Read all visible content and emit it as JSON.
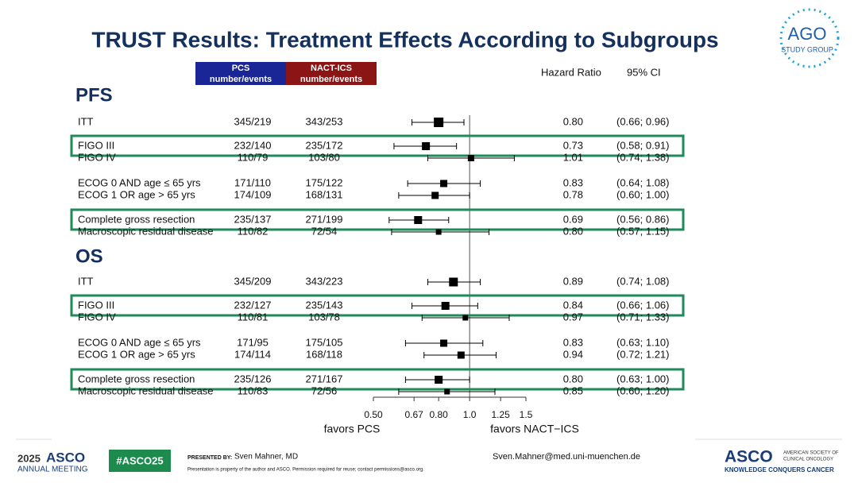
{
  "chart_data": {
    "type": "forest",
    "title": "TRUST Results: Treatment Effects According to Subgroups",
    "columns": {
      "pcs": "PCS",
      "pcs_sub": "number/events",
      "nact": "NACT-ICS",
      "nact_sub": "number/events",
      "hr": "Hazard Ratio",
      "ci": "95% CI"
    },
    "x_label_left": "favors PCS",
    "x_label_right": "favors NACT−ICS",
    "log_x": true,
    "xlim": [
      0.5,
      1.5
    ],
    "xticks": [
      {
        "value": 0.5,
        "label": "0.50"
      },
      0.67,
      {
        "value": 0.8,
        "label": "0.80"
      },
      {
        "value": 1,
        "label": "1.0"
      },
      1.25,
      1.5
    ],
    "reference": 1,
    "color": "#000000",
    "sections": [
      {
        "title": "PFS",
        "categories": [
          "ITT",
          "FIGO III",
          "FIGO IV",
          "ECOG 0 AND age ≤ 65 yrs",
          "ECOG 1 OR age > 65 yrs",
          "Complete gross resection",
          "Macroscopic residual disease"
        ],
        "pcs": [
          "345/219",
          "232/140",
          "110/79",
          "171/110",
          "174/109",
          "235/137",
          "110/82"
        ],
        "nact": [
          "343/253",
          "235/172",
          "103/80",
          "175/122",
          "168/131",
          "271/199",
          "72/54"
        ],
        "values": [
          0.8,
          0.73,
          1.01,
          0.83,
          0.78,
          0.69,
          0.8
        ],
        "value_labels": [
          "0.80",
          "0.73",
          "1.01",
          "0.83",
          "0.78",
          "0.69",
          "0.80"
        ],
        "ci_low": [
          0.66,
          0.58,
          0.74,
          0.64,
          0.6,
          0.56,
          0.57
        ],
        "ci_high": [
          0.96,
          0.91,
          1.38,
          1.08,
          1,
          0.86,
          1.15
        ],
        "ci_labels": [
          "(0.66; 0.96)",
          "(0.58; 0.91)",
          "(0.74; 1.38)",
          "(0.64; 1.08)",
          "(0.60; 1.00)",
          "(0.56; 0.86)",
          "(0.57; 1.15)"
        ]
      },
      {
        "title": "OS",
        "categories": [
          "ITT",
          "FIGO III",
          "FIGO IV",
          "ECOG 0 AND age ≤ 65 yrs",
          "ECOG 1 OR age > 65 yrs",
          "Complete gross resection",
          "Macroscopic residual disease"
        ],
        "pcs": [
          "345/209",
          "232/127",
          "110/81",
          "171/95",
          "174/114",
          "235/126",
          "110/83"
        ],
        "nact": [
          "343/223",
          "235/143",
          "103/78",
          "175/105",
          "168/118",
          "271/167",
          "72/56"
        ],
        "values": [
          0.89,
          0.84,
          0.97,
          0.83,
          0.94,
          0.8,
          0.85
        ],
        "value_labels": [
          "0.89",
          "0.84",
          "0.97",
          "0.83",
          "0.94",
          "0.80",
          "0.85"
        ],
        "ci_low": [
          0.74,
          0.66,
          0.71,
          0.63,
          0.72,
          0.63,
          0.6
        ],
        "ci_high": [
          1.08,
          1.06,
          1.33,
          1.1,
          1.21,
          1,
          1.2
        ],
        "ci_labels": [
          "(0.74; 1.08)",
          "(0.66; 1.06)",
          "(0.71; 1.33)",
          "(0.63; 1.10)",
          "(0.72; 1.21)",
          "(0.63; 1.00)",
          "(0.60; 1.20)"
        ]
      }
    ]
  },
  "slide": {
    "logo_top": "AGO",
    "logo_sub": "STUDY GROUP",
    "meeting_year": "2025",
    "meeting_name": "ASCO",
    "meeting_sub": "ANNUAL MEETING",
    "hashtag": "#ASCO25",
    "presented_by": "PRESENTED BY:",
    "presenter": "Sven Mahner, MD",
    "notice": "Presentation is property of the author and ASCO. Permission required for reuse; contact permissions@asco.org.",
    "email": "Sven.Mahner@med.uni-muenchen.de",
    "asco": "ASCO",
    "asco_sub1": "AMERICAN SOCIETY OF",
    "asco_sub2": "CLINICAL ONCOLOGY",
    "asco_tag": "KNOWLEDGE CONQUERS CANCER"
  }
}
